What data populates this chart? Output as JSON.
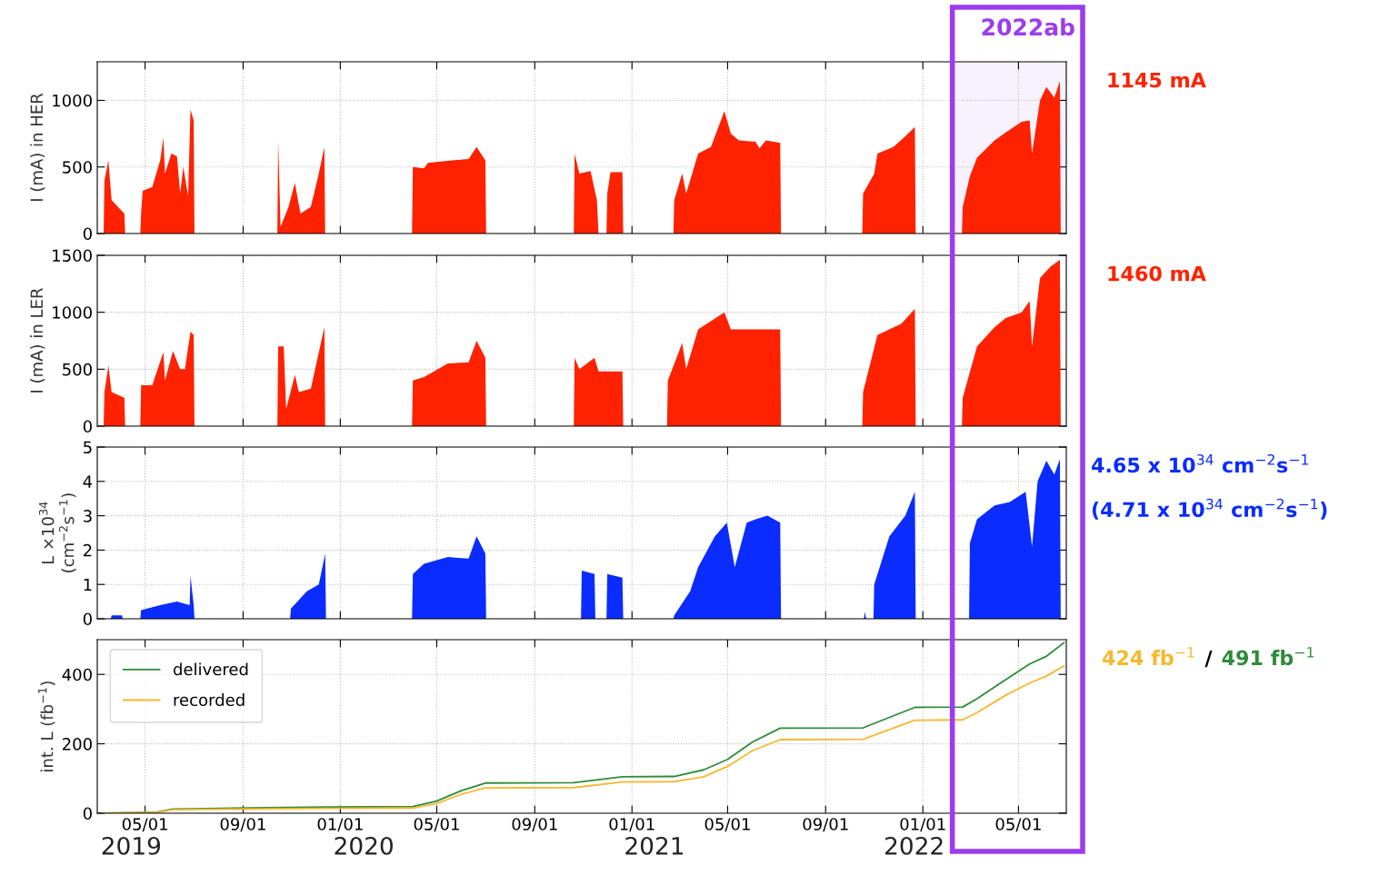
{
  "chart_data": [
    {
      "type": "area",
      "ylabel": "I (mA) in HER",
      "xlim": [
        "2019-03-02",
        "2022-06-30"
      ],
      "ylim": [
        0,
        1290
      ],
      "yticks": [
        0,
        500,
        1000
      ],
      "grid": true,
      "tick_labels": "y",
      "xticks": [
        {
          "value": "2019-05-01",
          "label": null
        },
        {
          "value": "2019-09-01",
          "label": null
        },
        {
          "value": "2020-01-01",
          "label": null
        },
        {
          "value": "2020-05-01",
          "label": null
        },
        {
          "value": "2020-09-01",
          "label": null
        },
        {
          "value": "2021-01-01",
          "label": null
        },
        {
          "value": "2021-05-01",
          "label": null
        },
        {
          "value": "2021-09-01",
          "label": null
        },
        {
          "value": "2022-01-01",
          "label": null
        },
        {
          "value": "2022-05-01",
          "label": null
        }
      ],
      "bands": [
        {
          "axis": "x",
          "from": "2022-02-07",
          "to": "2022-06-30",
          "label": "2022ab",
          "color": "#9b3cf0"
        }
      ],
      "annotations": [
        "1145 mA"
      ],
      "series": [
        {
          "color": "#ff2200",
          "x": [
            "2019-03-10",
            "2019-03-11",
            "2019-03-16",
            "2019-03-20",
            "2019-03-28",
            "2019-04-05",
            "2019-04-06",
            "2019-04-25",
            "2019-04-26",
            "2019-04-28",
            "2019-05-10",
            "2019-05-20",
            "2019-05-24",
            "2019-05-26",
            "2019-06-03",
            "2019-06-10",
            "2019-06-14",
            "2019-06-18",
            "2019-06-24",
            "2019-06-27",
            "2019-07-01",
            "2019-07-02",
            "2019-10-14",
            "2019-10-15",
            "2019-10-18",
            "2019-10-28",
            "2019-11-05",
            "2019-11-12",
            "2019-11-25",
            "2019-12-05",
            "2019-12-12",
            "2019-12-13",
            "2020-03-31",
            "2020-04-01",
            "2020-04-15",
            "2020-04-20",
            "2020-05-20",
            "2020-06-10",
            "2020-06-20",
            "2020-07-01",
            "2020-07-02",
            "2020-10-20",
            "2020-10-21",
            "2020-10-27",
            "2020-11-10",
            "2020-11-18",
            "2020-11-20",
            "2020-11-30",
            "2020-12-01",
            "2020-12-05",
            "2020-12-20",
            "2020-12-21",
            "2021-02-22",
            "2021-02-23",
            "2021-03-05",
            "2021-03-10",
            "2021-03-25",
            "2021-04-10",
            "2021-04-27",
            "2021-05-05",
            "2021-05-15",
            "2021-06-05",
            "2021-06-10",
            "2021-06-18",
            "2021-07-06",
            "2021-07-07",
            "2021-10-17",
            "2021-10-18",
            "2021-11-01",
            "2021-11-05",
            "2021-11-25",
            "2021-12-10",
            "2021-12-22",
            "2021-12-23",
            "2022-02-19",
            "2022-02-20",
            "2022-03-01",
            "2022-03-10",
            "2022-04-01",
            "2022-04-15",
            "2022-05-05",
            "2022-05-15",
            "2022-05-18",
            "2022-05-28",
            "2022-06-05",
            "2022-06-15",
            "2022-06-22",
            "2022-06-23"
          ],
          "values": [
            0,
            400,
            550,
            250,
            200,
            150,
            0,
            0,
            150,
            320,
            350,
            550,
            720,
            450,
            600,
            580,
            300,
            500,
            280,
            930,
            850,
            0,
            0,
            700,
            50,
            200,
            380,
            150,
            200,
            450,
            650,
            0,
            0,
            500,
            490,
            530,
            550,
            560,
            650,
            550,
            0,
            0,
            600,
            450,
            470,
            250,
            0,
            0,
            300,
            460,
            460,
            0,
            0,
            250,
            450,
            300,
            600,
            650,
            920,
            750,
            700,
            690,
            640,
            700,
            680,
            0,
            0,
            300,
            450,
            600,
            650,
            730,
            800,
            0,
            0,
            200,
            430,
            570,
            700,
            760,
            840,
            850,
            600,
            1000,
            1100,
            1020,
            1145,
            0
          ]
        }
      ]
    },
    {
      "type": "area",
      "ylabel": "I (mA) in LER",
      "xlim": [
        "2019-03-02",
        "2022-06-30"
      ],
      "ylim": [
        0,
        1500
      ],
      "yticks": [
        0,
        500,
        1000,
        1500
      ],
      "grid": true,
      "tick_labels": "y",
      "xticks": [
        {
          "value": "2019-05-01",
          "label": null
        },
        {
          "value": "2019-09-01",
          "label": null
        },
        {
          "value": "2020-01-01",
          "label": null
        },
        {
          "value": "2020-05-01",
          "label": null
        },
        {
          "value": "2020-09-01",
          "label": null
        },
        {
          "value": "2021-01-01",
          "label": null
        },
        {
          "value": "2021-05-01",
          "label": null
        },
        {
          "value": "2021-09-01",
          "label": null
        },
        {
          "value": "2022-01-01",
          "label": null
        },
        {
          "value": "2022-05-01",
          "label": null
        }
      ],
      "annotations": [
        "1460 mA"
      ],
      "series": [
        {
          "color": "#ff2200",
          "x": [
            "2019-03-10",
            "2019-03-11",
            "2019-03-16",
            "2019-03-20",
            "2019-04-05",
            "2019-04-06",
            "2019-04-25",
            "2019-04-26",
            "2019-05-10",
            "2019-05-24",
            "2019-05-26",
            "2019-06-05",
            "2019-06-14",
            "2019-06-20",
            "2019-06-27",
            "2019-07-01",
            "2019-07-02",
            "2019-10-14",
            "2019-10-15",
            "2019-10-22",
            "2019-10-25",
            "2019-11-05",
            "2019-11-10",
            "2019-11-25",
            "2019-12-12",
            "2019-12-13",
            "2020-03-31",
            "2020-04-01",
            "2020-04-15",
            "2020-05-15",
            "2020-06-10",
            "2020-06-20",
            "2020-07-01",
            "2020-07-02",
            "2020-10-20",
            "2020-10-21",
            "2020-10-27",
            "2020-11-15",
            "2020-11-20",
            "2020-12-20",
            "2020-12-21",
            "2021-02-14",
            "2021-02-15",
            "2021-03-05",
            "2021-03-10",
            "2021-03-25",
            "2021-04-27",
            "2021-05-05",
            "2021-06-20",
            "2021-07-06",
            "2021-07-07",
            "2021-10-17",
            "2021-10-18",
            "2021-11-05",
            "2021-12-05",
            "2021-12-22",
            "2021-12-23",
            "2022-02-19",
            "2022-02-20",
            "2022-03-10",
            "2022-04-01",
            "2022-04-15",
            "2022-05-05",
            "2022-05-15",
            "2022-05-18",
            "2022-05-28",
            "2022-06-10",
            "2022-06-22",
            "2022-06-23"
          ],
          "values": [
            0,
            300,
            530,
            300,
            250,
            0,
            0,
            360,
            360,
            650,
            400,
            660,
            500,
            500,
            830,
            800,
            0,
            0,
            700,
            700,
            150,
            450,
            300,
            330,
            870,
            0,
            0,
            400,
            430,
            550,
            560,
            750,
            600,
            0,
            0,
            600,
            500,
            600,
            480,
            480,
            0,
            0,
            400,
            730,
            500,
            850,
            1000,
            850,
            850,
            850,
            0,
            0,
            300,
            800,
            900,
            1030,
            0,
            0,
            250,
            700,
            870,
            950,
            1000,
            1100,
            700,
            1300,
            1400,
            1460,
            0
          ]
        }
      ]
    },
    {
      "type": "area",
      "ylabel": "L ×10$^{34}$\n(cm$^{−2}$s$^{−1}$)",
      "xlim": [
        "2019-03-02",
        "2022-06-30"
      ],
      "ylim": [
        0,
        5
      ],
      "yticks": [
        0,
        1,
        2,
        3,
        4,
        5
      ],
      "grid": true,
      "tick_labels": "y",
      "xticks": [
        {
          "value": "2019-05-01",
          "label": null
        },
        {
          "value": "2019-09-01",
          "label": null
        },
        {
          "value": "2020-01-01",
          "label": null
        },
        {
          "value": "2020-05-01",
          "label": null
        },
        {
          "value": "2020-09-01",
          "label": null
        },
        {
          "value": "2021-01-01",
          "label": null
        },
        {
          "value": "2021-05-01",
          "label": null
        },
        {
          "value": "2021-09-01",
          "label": null
        },
        {
          "value": "2022-01-01",
          "label": null
        },
        {
          "value": "2022-05-01",
          "label": null
        }
      ],
      "annotations": [
        "4.65 x 10$^{34}$ cm$^{−2}$s$^{−1}$",
        "(4.71 x 10$^{34}$ cm$^{−2}$s$^{−1}$)"
      ],
      "series": [
        {
          "color": "#0a2cff",
          "x": [
            "2019-03-19",
            "2019-03-20",
            "2019-04-02",
            "2019-04-03",
            "2019-04-25",
            "2019-04-26",
            "2019-05-20",
            "2019-06-10",
            "2019-06-26",
            "2019-06-27",
            "2019-07-01",
            "2019-07-02",
            "2019-10-30",
            "2019-10-31",
            "2019-11-20",
            "2019-12-05",
            "2019-12-13",
            "2019-12-14",
            "2020-03-31",
            "2020-04-01",
            "2020-04-15",
            "2020-05-15",
            "2020-06-10",
            "2020-06-20",
            "2020-07-01",
            "2020-07-02",
            "2020-10-29",
            "2020-10-30",
            "2020-11-15",
            "2020-11-16",
            "2020-11-30",
            "2020-12-01",
            "2020-12-20",
            "2020-12-21",
            "2021-02-22",
            "2021-02-23",
            "2021-03-15",
            "2021-03-25",
            "2021-04-15",
            "2021-04-30",
            "2021-05-10",
            "2021-05-25",
            "2021-06-05",
            "2021-06-20",
            "2021-07-06",
            "2021-07-07",
            "2021-10-19",
            "2021-10-20",
            "2021-10-22",
            "2021-10-31",
            "2021-11-01",
            "2021-11-20",
            "2021-12-10",
            "2021-12-22",
            "2021-12-23",
            "2022-02-28",
            "2022-03-01",
            "2022-03-10",
            "2022-04-01",
            "2022-04-20",
            "2022-05-10",
            "2022-05-18",
            "2022-05-25",
            "2022-06-05",
            "2022-06-15",
            "2022-06-22",
            "2022-06-23"
          ],
          "values": [
            0,
            0.1,
            0.1,
            0,
            0,
            0.25,
            0.4,
            0.5,
            0.4,
            1.25,
            0.4,
            0,
            0,
            0.3,
            0.8,
            1.0,
            1.9,
            0,
            0,
            1.3,
            1.6,
            1.8,
            1.75,
            2.4,
            1.9,
            0,
            0,
            1.4,
            1.3,
            0,
            0,
            1.3,
            1.2,
            0,
            0,
            0.1,
            0.8,
            1.5,
            2.4,
            2.8,
            1.5,
            2.8,
            2.9,
            3.0,
            2.8,
            0,
            0,
            0.2,
            0,
            0,
            1.0,
            2.4,
            3.0,
            3.7,
            0,
            0,
            2.2,
            2.9,
            3.3,
            3.4,
            3.7,
            2.1,
            4.0,
            4.6,
            4.2,
            4.65,
            0
          ]
        }
      ]
    },
    {
      "type": "line",
      "ylabel": "int. L (fb$^{−1}$)",
      "xlim": [
        "2019-03-02",
        "2022-06-30"
      ],
      "ylim": [
        0,
        500
      ],
      "yticks": [
        0,
        200,
        400
      ],
      "grid": true,
      "legend": "top left",
      "xticks": [
        {
          "value": "2019-05-01",
          "label": "05/01"
        },
        {
          "value": "2019-09-01",
          "label": "09/01"
        },
        {
          "value": "2020-01-01",
          "label": "01/01"
        },
        {
          "value": "2020-05-01",
          "label": "05/01"
        },
        {
          "value": "2020-09-01",
          "label": "09/01"
        },
        {
          "value": "2021-01-01",
          "label": "01/01"
        },
        {
          "value": "2021-05-01",
          "label": "05/01"
        },
        {
          "value": "2021-09-01",
          "label": "09/01"
        },
        {
          "value": "2022-01-01",
          "label": "01/01"
        },
        {
          "value": "2022-05-01",
          "label": "05/01"
        }
      ],
      "annotations": [
        "424 fb$^{−1}$",
        "/",
        "491 fb$^{−1}$",
        "2019",
        "2020",
        "2021",
        "2022"
      ],
      "x": [
        "2019-03-10",
        "2019-05-15",
        "2019-06-05",
        "2019-07-01",
        "2019-12-15",
        "2020-04-01",
        "2020-05-01",
        "2020-06-01",
        "2020-07-01",
        "2020-10-20",
        "2020-12-20",
        "2021-02-23",
        "2021-04-01",
        "2021-05-01",
        "2021-06-01",
        "2021-07-06",
        "2021-10-18",
        "2021-12-22",
        "2022-02-20",
        "2022-03-10",
        "2022-04-15",
        "2022-05-15",
        "2022-06-05",
        "2022-06-27"
      ],
      "series": [
        {
          "name": "delivered",
          "color": "#2e8b3a",
          "values": [
            0,
            3,
            12,
            13,
            18,
            19,
            35,
            65,
            87,
            88,
            105,
            106,
            125,
            155,
            205,
            245,
            246,
            305,
            306,
            330,
            385,
            430,
            452,
            491
          ]
        },
        {
          "name": "recorded",
          "color": "#f5b82e",
          "values": [
            0,
            2,
            10,
            11,
            14,
            15,
            28,
            55,
            73,
            74,
            90,
            91,
            105,
            135,
            180,
            212,
            213,
            268,
            269,
            290,
            340,
            375,
            395,
            424
          ]
        }
      ]
    }
  ]
}
